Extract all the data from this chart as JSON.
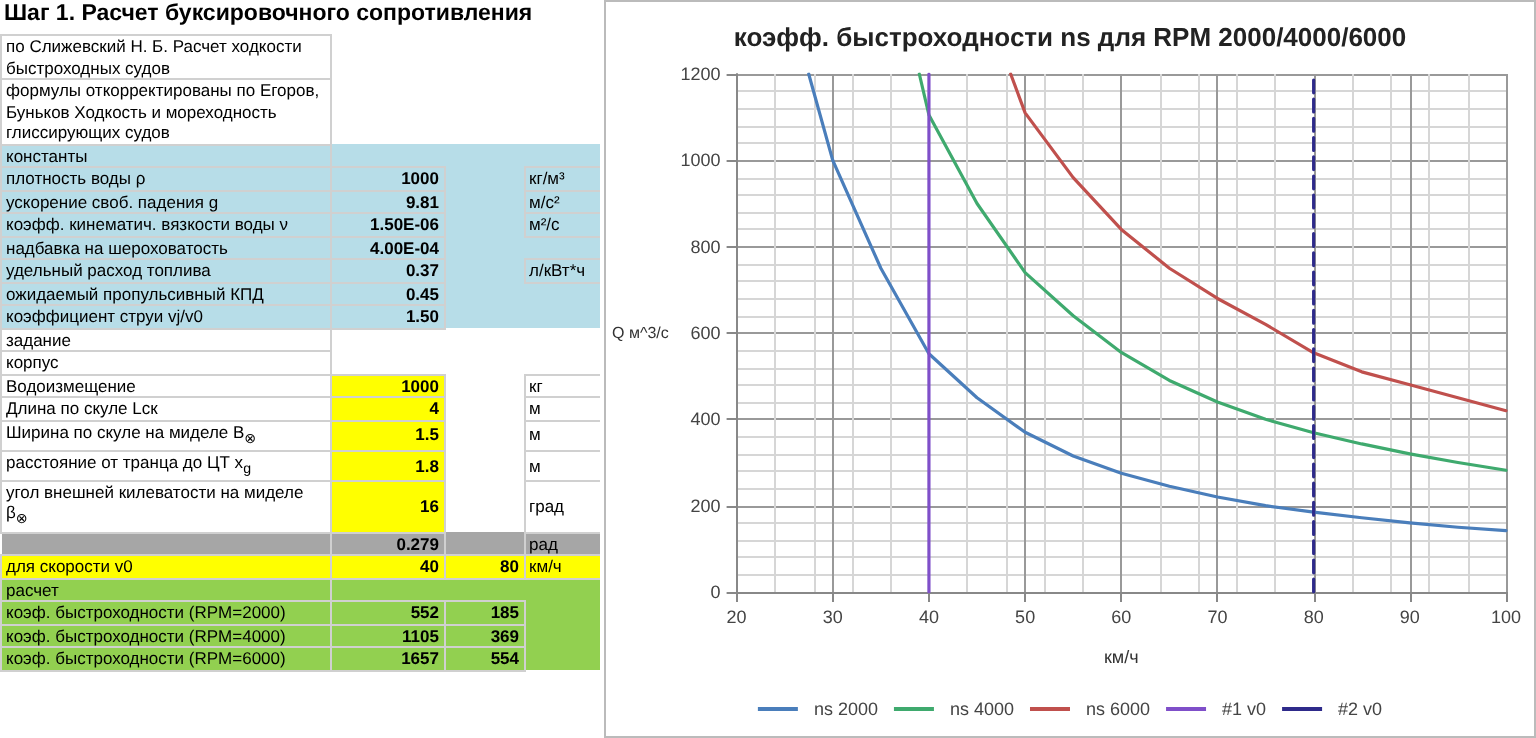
{
  "chart_data": [
    {
      "type": "other",
      "title": "Шаг 1. Расчет буксировочного сопротивления",
      "cell_labels": [
        [
          "по Слижевский Н. Б. Расчет ходкости быстроходных судов",
          null,
          null,
          null
        ],
        [
          "формулы откорректированы по Егоров, Буньков Ходкость и мореходность глиссирующих судов",
          null,
          null,
          null
        ],
        [
          "константы",
          null,
          null,
          null
        ],
        [
          "плотность воды ρ",
          "1000",
          null,
          "кг/м³"
        ],
        [
          "ускорение своб. падения g",
          "9.81",
          null,
          "м/с²"
        ],
        [
          "коэфф. кинематич. вязкости воды ν",
          "1.50E-06",
          null,
          "м²/с"
        ],
        [
          "надбавка на шероховатость",
          "4.00E-04",
          null,
          null
        ],
        [
          "удельный расход топлива",
          "0.37",
          null,
          "л/кВт*ч"
        ],
        [
          "ожидаемый пропульсивный КПД",
          "0.45",
          null,
          null
        ],
        [
          "коэффициент струи vj/v0",
          "1.50",
          null,
          null
        ],
        [
          "задание",
          null,
          null,
          null
        ],
        [
          "корпус",
          null,
          null,
          null
        ],
        [
          "Водоизмещение",
          "1000",
          null,
          "кг"
        ],
        [
          "Длина по скуле Lск",
          "4",
          null,
          "м"
        ],
        [
          "Ширина по скуле на миделе B$_{⊗}$",
          "1.5",
          null,
          "м"
        ],
        [
          "расстояние от транца до ЦТ x$_{g}$",
          "1.8",
          null,
          "м"
        ],
        [
          "угол внешней килеватости на миделе β$_{⊗}$",
          "16",
          null,
          "град"
        ],
        [
          null,
          "0.279",
          null,
          "рад"
        ],
        [
          "для скорости v0",
          "40",
          "80",
          "км/ч"
        ],
        [
          "расчет",
          null,
          null,
          null
        ],
        [
          "коэф. быстроходности (RPM=2000)",
          "552",
          "185",
          null
        ],
        [
          "коэф. быстроходности (RPM=4000)",
          "1105",
          "369",
          null
        ],
        [
          "коэф. быстроходности (RPM=6000)",
          "1657",
          "554",
          null
        ]
      ],
      "colors": [
        [
          "#ffffff",
          null
        ],
        [
          "#ffffff",
          null
        ],
        [
          "#b7dde8",
          null
        ],
        [
          "#b7dde8",
          null
        ],
        [
          "#b7dde8",
          null
        ],
        [
          "#b7dde8",
          null
        ],
        [
          "#b7dde8",
          null
        ],
        [
          "#b7dde8",
          null
        ],
        [
          "#b7dde8",
          null
        ],
        [
          "#b7dde8",
          null
        ],
        [
          "#ffffff",
          null
        ],
        [
          "#ffffff",
          null
        ],
        [
          "#ffffff",
          "#ffff00"
        ],
        [
          "#ffffff",
          "#ffff00"
        ],
        [
          "#ffffff",
          "#ffff00"
        ],
        [
          "#ffffff",
          "#ffff00"
        ],
        [
          "#ffffff",
          "#ffff00"
        ],
        [
          "#a6a6a6",
          null
        ],
        [
          "#ffff00",
          null
        ],
        [
          "#92d050",
          null
        ],
        [
          "#92d050",
          null
        ],
        [
          "#92d050",
          null
        ],
        [
          "#92d050",
          null
        ]
      ]
    },
    {
      "type": "line",
      "title": "коэфф. быстроходности ns для RPM 2000/4000/6000",
      "xlabel": "км/ч",
      "ylabel": "Q м^3/с",
      "xlim": [
        20,
        100
      ],
      "xticks": [
        20,
        30,
        40,
        50,
        60,
        70,
        80,
        90,
        100
      ],
      "ylim": [
        0,
        1200
      ],
      "yticks": [
        0,
        200,
        400,
        600,
        800,
        1000,
        1200
      ],
      "grid": true,
      "legend": "bottom",
      "marker": "none",
      "series": [
        {
          "name": "ns 2000",
          "color": "#4a7ebb",
          "x": [
            27.5,
            30,
            35,
            40,
            45,
            50,
            55,
            60,
            65,
            70,
            75,
            80,
            85,
            90,
            95,
            100
          ],
          "values": [
            1200,
            1000,
            750,
            552,
            450,
            370,
            315,
            275,
            245,
            220,
            200,
            185,
            172,
            160,
            150,
            142
          ]
        },
        {
          "name": "ns 4000",
          "color": "#3faa6e",
          "x": [
            39,
            40,
            45,
            50,
            55,
            60,
            65,
            70,
            75,
            80,
            85,
            90,
            95,
            100
          ],
          "values": [
            1200,
            1105,
            900,
            740,
            640,
            555,
            490,
            440,
            400,
            369,
            343,
            320,
            300,
            282
          ]
        },
        {
          "name": "ns 6000",
          "color": "#c0504d",
          "x": [
            48.5,
            50,
            55,
            60,
            65,
            70,
            75,
            80,
            85,
            90,
            95,
            100
          ],
          "values": [
            1200,
            1110,
            960,
            840,
            750,
            680,
            620,
            554,
            510,
            480,
            450,
            420
          ]
        },
        {
          "name": "#1 v0",
          "color": "#7f4fc9",
          "x": [
            40,
            40
          ],
          "values": [
            0,
            1200
          ]
        },
        {
          "name": "#2 v0",
          "color": "#2e2a8a",
          "line_style": "dashed",
          "x": [
            80,
            80
          ],
          "values": [
            0,
            1200
          ]
        }
      ]
    }
  ]
}
